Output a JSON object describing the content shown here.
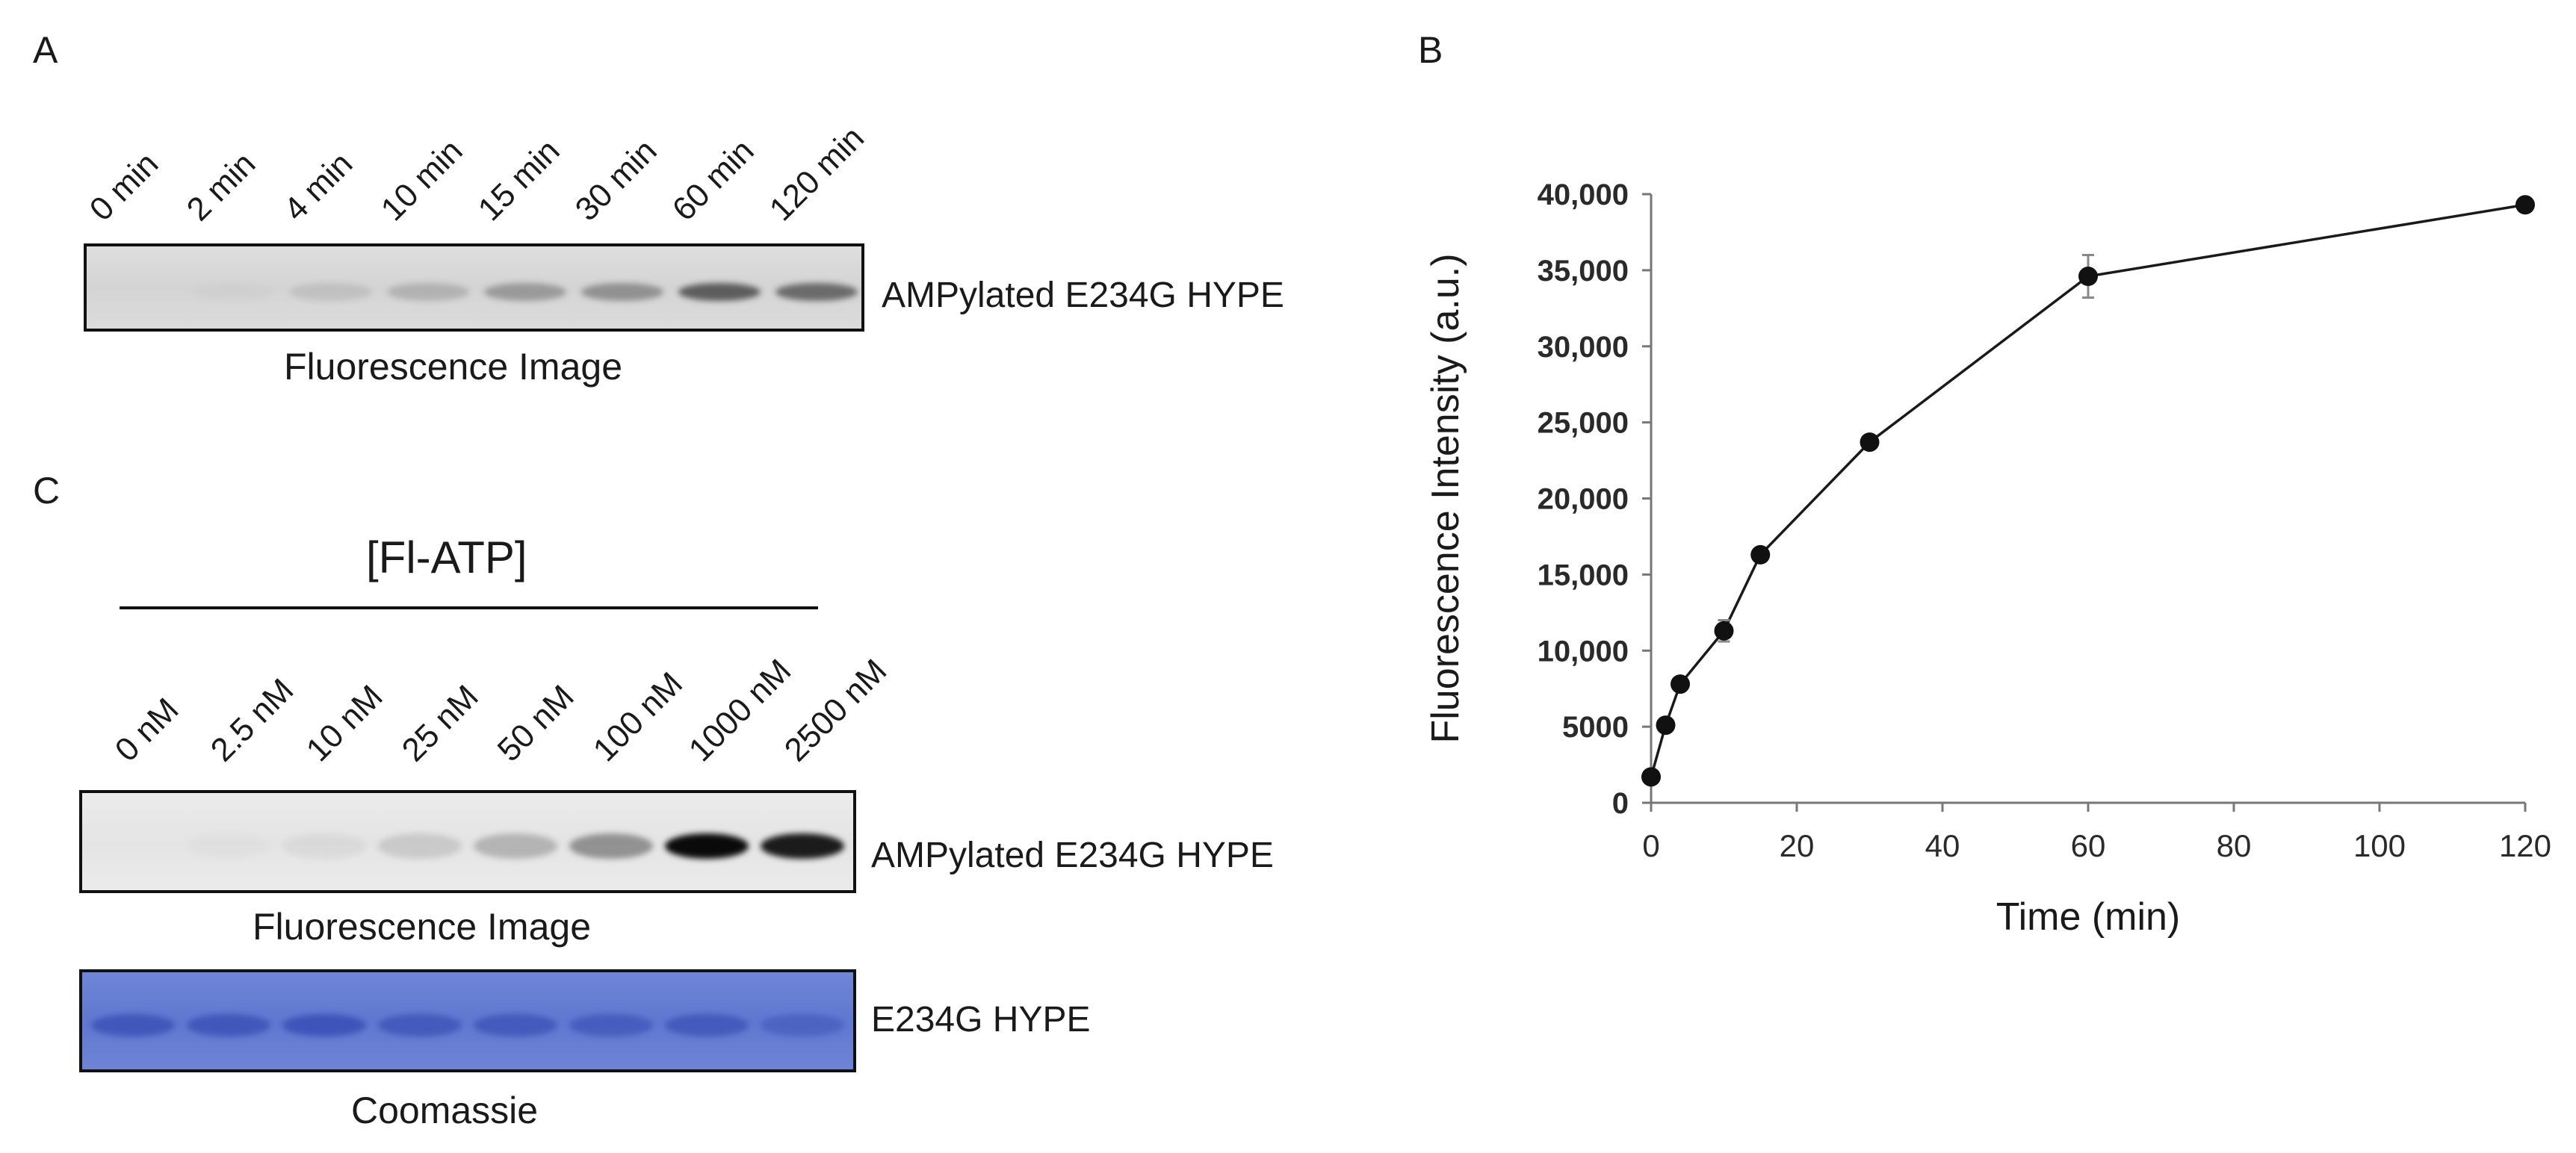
{
  "panel_a": {
    "letter": "A",
    "lanes": [
      "0 min",
      "2 min",
      "4 min",
      "10 min",
      "15 min",
      "30 min",
      "60 min",
      "120 min"
    ],
    "band_label": "AMPylated E234G HYPE",
    "caption": "Fluorescence Image",
    "band_intensity": [
      0.0,
      0.02,
      0.1,
      0.18,
      0.3,
      0.35,
      0.62,
      0.55
    ]
  },
  "panel_b": {
    "letter": "B"
  },
  "panel_c": {
    "letter": "C",
    "title": "[Fl-ATP]",
    "lanes": [
      "0 nM",
      "2.5 nM",
      "10 nM",
      "25 nM",
      "50 nM",
      "100 nM",
      "1000 nM",
      "2500 nM"
    ],
    "fluor_label": "AMPylated E234G HYPE",
    "fluor_caption": "Fluorescence Image",
    "fluor_intensity": [
      0.0,
      0.02,
      0.05,
      0.12,
      0.22,
      0.38,
      1.0,
      0.92
    ],
    "coom_label": "E234G HYPE",
    "coom_caption": "Coomassie",
    "coom_intensity": [
      0.55,
      0.55,
      0.6,
      0.5,
      0.5,
      0.45,
      0.5,
      0.35
    ]
  },
  "chart_data": {
    "type": "line",
    "title": "",
    "xlabel": "Time (min)",
    "ylabel": "Fluorescence Intensity (a.u.)",
    "xlim": [
      0,
      120
    ],
    "ylim": [
      0,
      40000
    ],
    "xticks": [
      0,
      20,
      40,
      60,
      80,
      100,
      120
    ],
    "xtick_labels": [
      "0",
      "20",
      "40",
      "60",
      "80",
      "100",
      "120"
    ],
    "yticks": [
      0,
      5000,
      10000,
      15000,
      20000,
      25000,
      30000,
      35000,
      40000
    ],
    "ytick_labels": [
      "0",
      "5000",
      "10,000",
      "15,000",
      "20,000",
      "25,000",
      "30,000",
      "35,000",
      "40,000"
    ],
    "grid": false,
    "series": [
      {
        "name": "AMPylated E234G HYPE",
        "x": [
          0,
          2,
          4,
          10,
          15,
          30,
          60,
          120
        ],
        "y": [
          1700,
          5100,
          7800,
          11300,
          16300,
          23700,
          34600,
          39300
        ],
        "error": [
          100,
          200,
          200,
          700,
          200,
          200,
          1400,
          200
        ]
      }
    ]
  }
}
